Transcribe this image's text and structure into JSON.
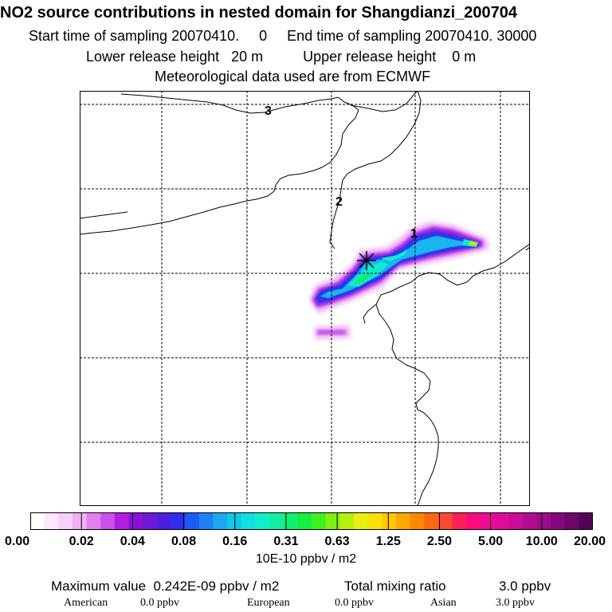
{
  "title": "NO2 source contributions in nested domain for Shangdianzi_200704",
  "subtitle_1": "Start time of sampling 20070410.     0     End time of sampling 20070410. 30000",
  "subtitle_2": "Lower release height   20 m          Upper release height    0 m",
  "subtitle_3": "Meteorological data used are from ECMWF",
  "map": {
    "labels": [
      "3",
      "2",
      "1"
    ],
    "marker_icon": "star-cross-icon",
    "colors": {
      "coast": "#000000",
      "grid": "#000000"
    }
  },
  "colorbar": {
    "colors": [
      "#ffffff",
      "#fde8fd",
      "#f9d0f9",
      "#f2b0f5",
      "#e37ff0",
      "#cc4fe8",
      "#b31ee0",
      "#8c10d8",
      "#6a1ad6",
      "#4c1fe0",
      "#2e2ef0",
      "#1a5af5",
      "#1c82f5",
      "#1aa8f0",
      "#12c8e8",
      "#10e0e0",
      "#10f0c8",
      "#10f0a0",
      "#10f070",
      "#12f040",
      "#40f020",
      "#80f010",
      "#b8f010",
      "#e8f010",
      "#f8e000",
      "#ffc800",
      "#ffa800",
      "#ff8800",
      "#ff6810",
      "#ff4830",
      "#ff2058",
      "#ff0a80",
      "#f00a98",
      "#e00a9c",
      "#cc0c98",
      "#b40c90",
      "#9c0c88",
      "#84087c",
      "#6c0868",
      "#540454"
    ],
    "ticks": [
      "0.00",
      "0.02",
      "0.04",
      "0.08",
      "0.16",
      "0.31",
      "0.63",
      "1.25",
      "2.50",
      "5.00",
      "10.00",
      "20.00"
    ],
    "unit": "10E-10 ppbv / m2"
  },
  "stats": {
    "max_label": "Maximum value  0.242E-09 ppbv / m2",
    "total_label": "Total mixing ratio",
    "total_value": "3.0 ppbv",
    "regions": [
      {
        "name": "American",
        "value": "0.0 ppbv"
      },
      {
        "name": "European",
        "value": "0.0 ppbv"
      },
      {
        "name": "Asian",
        "value": "3.0 ppbv"
      }
    ]
  }
}
